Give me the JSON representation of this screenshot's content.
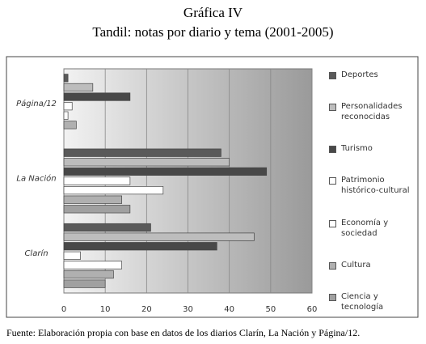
{
  "chart_data": {
    "type": "bar",
    "orientation": "horizontal",
    "title": "Gráfica IV",
    "subtitle": "Tandil: notas por diario y tema (2001-2005)",
    "source": "Fuente: Elaboración propia con base en datos de los diarios Clarín, La Nación y Página/12.",
    "categories": [
      "Página/12",
      "La Nación",
      "Clarín"
    ],
    "series": [
      {
        "name": "Deportes",
        "color": "#5a5a5a",
        "values": [
          1,
          38,
          21
        ]
      },
      {
        "name": "Personalidades reconocidas",
        "color": "#bdbdbd",
        "values": [
          7,
          40,
          46
        ]
      },
      {
        "name": "Turismo",
        "color": "#484848",
        "values": [
          16,
          49,
          37
        ]
      },
      {
        "name": "Patrimonio histórico-cultural",
        "color": "#ffffff",
        "values": [
          2,
          16,
          4
        ]
      },
      {
        "name": "Economía y sociedad",
        "color": "#ffffff",
        "values": [
          1,
          24,
          14
        ]
      },
      {
        "name": "Cultura",
        "color": "#b0b0b0",
        "values": [
          3,
          14,
          12
        ]
      },
      {
        "name": "Ciencia y tecnología",
        "color": "#a0a0a0",
        "values": [
          0,
          16,
          10
        ]
      }
    ],
    "xlim": [
      0,
      60
    ],
    "xticks": [
      0,
      10,
      20,
      30,
      40,
      50,
      60
    ],
    "grid": true
  }
}
